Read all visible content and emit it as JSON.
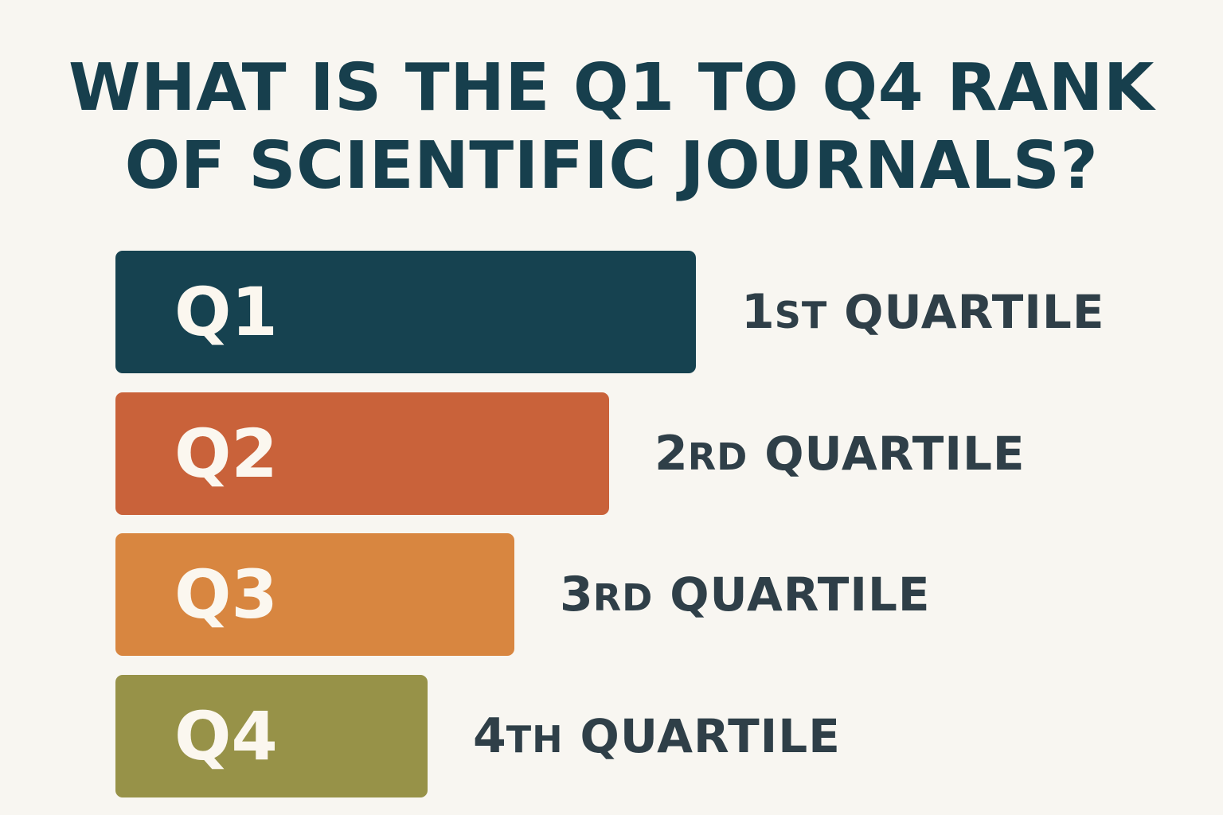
{
  "title": {
    "line1": "WHAT IS THE Q1 TO Q4 RANK",
    "line2": "OF SCIENTIFIC JOURNALS?"
  },
  "rows": [
    {
      "label": "Q1",
      "num": "1",
      "suffix": "ST",
      "word": "QUARTILE",
      "color": "#164250",
      "value": 4
    },
    {
      "label": "Q2",
      "num": "2",
      "suffix": "RD",
      "word": "QUARTILE",
      "color": "#c9623a",
      "value": 3.4
    },
    {
      "label": "Q3",
      "num": "3",
      "suffix": "RD",
      "word": "QUARTILE",
      "color": "#d88640",
      "value": 2.75
    },
    {
      "label": "Q4",
      "num": "4",
      "suffix": "TH",
      "word": "QUARTILE",
      "color": "#979248",
      "value": 2.15
    }
  ]
}
